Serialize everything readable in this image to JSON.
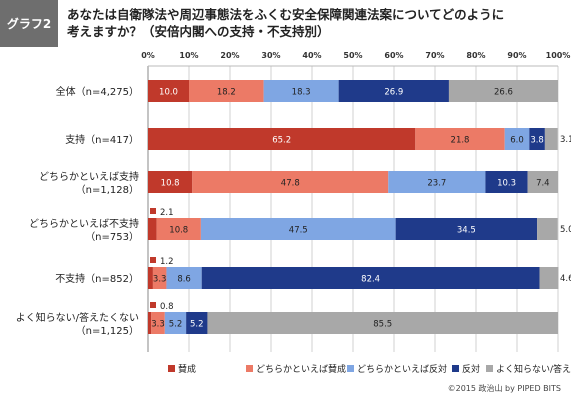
{
  "header": {
    "badge": "グラフ2",
    "title_line1": "あなたは自衛隊法や周辺事態法をふくむ安全保障関連法案についてどのように",
    "title_line2": "考えますか？（安倍内閣への支持・不支持別）"
  },
  "footer": {
    "credit": "©2015 政治山 by PIPED BITS"
  },
  "colors": {
    "賛成": "#c0392b",
    "どちらかといえば賛成": "#ec7a66",
    "どちらかといえば反対": "#7fa6e3",
    "反対": "#1f3a8a",
    "よく知らない/答えたくない": "#a8a8a8"
  },
  "chart_data": {
    "type": "bar",
    "orientation": "horizontal-stacked-percent",
    "xlim": [
      0,
      100
    ],
    "x_ticks": [
      "0%",
      "10%",
      "20%",
      "30%",
      "40%",
      "50%",
      "60%",
      "70%",
      "80%",
      "90%",
      "100%"
    ],
    "grid": true,
    "legend_position": "bottom",
    "categories": [
      [
        "全体（n=4,275）"
      ],
      [
        "支持（n=417）"
      ],
      [
        "どちらかといえば支持",
        "（n=1,128）"
      ],
      [
        "どちらかといえば不支持",
        "（n=753）"
      ],
      [
        "不支持（n=852）"
      ],
      [
        "よく知らない/答えたくない",
        "（n=1,125）"
      ]
    ],
    "series": [
      {
        "name": "賛成",
        "values": [
          10.0,
          65.2,
          10.8,
          2.1,
          1.2,
          0.8
        ]
      },
      {
        "name": "どちらかといえば賛成",
        "values": [
          18.2,
          21.8,
          47.8,
          10.8,
          3.3,
          3.3
        ]
      },
      {
        "name": "どちらかといえば反対",
        "values": [
          18.3,
          6.0,
          23.7,
          47.5,
          8.6,
          5.2
        ]
      },
      {
        "name": "反対",
        "values": [
          26.9,
          3.8,
          10.3,
          34.5,
          82.4,
          5.2
        ]
      },
      {
        "name": "よく知らない/答えたくない",
        "values": [
          26.6,
          3.1,
          7.4,
          5.0,
          4.6,
          85.5
        ]
      }
    ]
  }
}
